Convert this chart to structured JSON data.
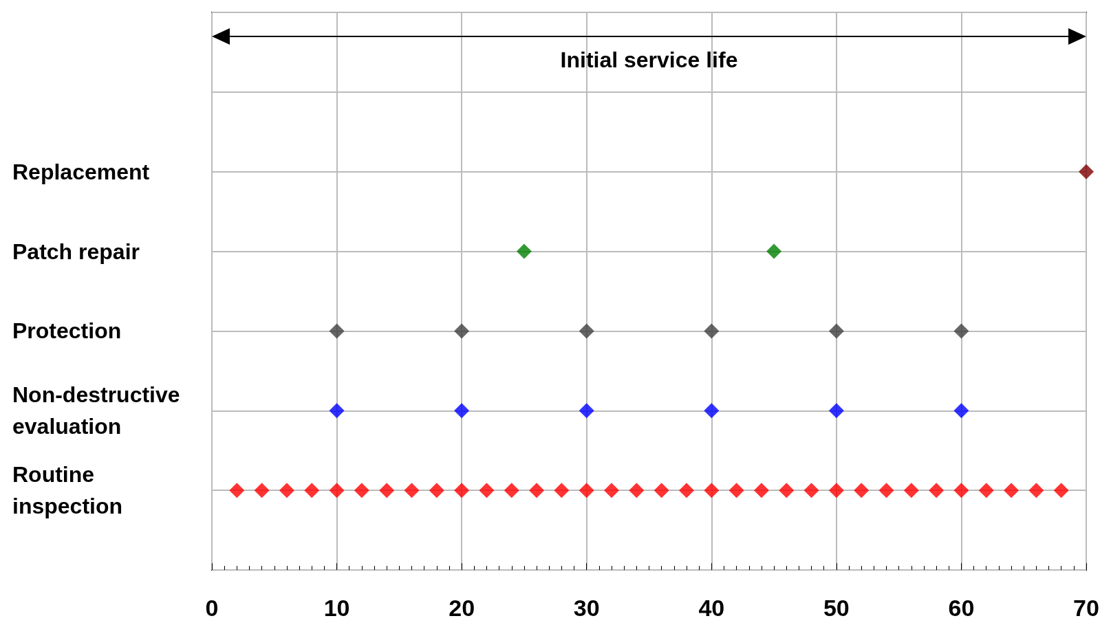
{
  "chart_data": {
    "type": "scatter",
    "orientation": "horizontal",
    "marker": "diamond",
    "grid": true,
    "xlim": [
      0,
      70
    ],
    "xticks": [
      0,
      10,
      20,
      30,
      40,
      50,
      60,
      70
    ],
    "categories": [
      null,
      null,
      "Replacement",
      "Patch repair",
      "Protection",
      "Non-destructive evaluation",
      "Routine inspection",
      null
    ],
    "annotations": [
      "Initial service life"
    ],
    "series": [
      {
        "colors": [
          null,
          null,
          "#800000",
          "#008000",
          "#404040",
          "#0000ff",
          "#ff0000",
          null
        ],
        "values": [
          null,
          null,
          70,
          25,
          10,
          10,
          2,
          null
        ]
      },
      {
        "colors": [
          null,
          null,
          null,
          "#008000",
          "#404040",
          "#0000ff",
          "#ff0000",
          null
        ],
        "values": [
          null,
          null,
          null,
          45,
          20,
          20,
          4,
          null
        ]
      },
      {
        "colors": [
          null,
          null,
          null,
          null,
          "#404040",
          "#0000ff",
          "#ff0000",
          null
        ],
        "values": [
          null,
          null,
          null,
          null,
          30,
          30,
          6,
          null
        ]
      },
      {
        "colors": [
          null,
          null,
          null,
          null,
          "#404040",
          "#0000ff",
          "#ff0000",
          null
        ],
        "values": [
          null,
          null,
          null,
          null,
          40,
          40,
          8,
          null
        ]
      },
      {
        "colors": [
          null,
          null,
          null,
          null,
          "#404040",
          "#0000ff",
          "#ff0000",
          null
        ],
        "values": [
          null,
          null,
          null,
          null,
          50,
          50,
          10,
          null
        ]
      },
      {
        "colors": [
          null,
          null,
          null,
          null,
          "#404040",
          "#0000ff",
          "#ff0000",
          null
        ],
        "values": [
          null,
          null,
          null,
          null,
          60,
          60,
          12,
          null
        ]
      },
      {
        "color": "#ff0000",
        "values": [
          null,
          null,
          null,
          null,
          null,
          null,
          14,
          null
        ]
      },
      {
        "color": "#ff0000",
        "values": [
          null,
          null,
          null,
          null,
          null,
          null,
          16,
          null
        ]
      },
      {
        "color": "#ff0000",
        "values": [
          null,
          null,
          null,
          null,
          null,
          null,
          18,
          null
        ]
      },
      {
        "color": "#ff0000",
        "values": [
          null,
          null,
          null,
          null,
          null,
          null,
          20,
          null
        ]
      },
      {
        "color": "#ff0000",
        "values": [
          null,
          null,
          null,
          null,
          null,
          null,
          22,
          null
        ]
      },
      {
        "color": "#ff0000",
        "values": [
          null,
          null,
          null,
          null,
          null,
          null,
          24,
          null
        ]
      },
      {
        "color": "#ff0000",
        "values": [
          null,
          null,
          null,
          null,
          null,
          null,
          26,
          null
        ]
      },
      {
        "color": "#ff0000",
        "values": [
          null,
          null,
          null,
          null,
          null,
          null,
          28,
          null
        ]
      },
      {
        "color": "#ff0000",
        "values": [
          null,
          null,
          null,
          null,
          null,
          null,
          30,
          null
        ]
      },
      {
        "color": "#ff0000",
        "values": [
          null,
          null,
          null,
          null,
          null,
          null,
          32,
          null
        ]
      },
      {
        "color": "#ff0000",
        "values": [
          null,
          null,
          null,
          null,
          null,
          null,
          34,
          null
        ]
      },
      {
        "color": "#ff0000",
        "values": [
          null,
          null,
          null,
          null,
          null,
          null,
          36,
          null
        ]
      },
      {
        "color": "#ff0000",
        "values": [
          null,
          null,
          null,
          null,
          null,
          null,
          38,
          null
        ]
      },
      {
        "color": "#ff0000",
        "values": [
          null,
          null,
          null,
          null,
          null,
          null,
          40,
          null
        ]
      },
      {
        "color": "#ff0000",
        "values": [
          null,
          null,
          null,
          null,
          null,
          null,
          42,
          null
        ]
      },
      {
        "color": "#ff0000",
        "values": [
          null,
          null,
          null,
          null,
          null,
          null,
          44,
          null
        ]
      },
      {
        "color": "#ff0000",
        "values": [
          null,
          null,
          null,
          null,
          null,
          null,
          46,
          null
        ]
      },
      {
        "color": "#ff0000",
        "values": [
          null,
          null,
          null,
          null,
          null,
          null,
          48,
          null
        ]
      },
      {
        "color": "#ff0000",
        "values": [
          null,
          null,
          null,
          null,
          null,
          null,
          50,
          null
        ]
      },
      {
        "color": "#ff0000",
        "values": [
          null,
          null,
          null,
          null,
          null,
          null,
          52,
          null
        ]
      },
      {
        "color": "#ff0000",
        "values": [
          null,
          null,
          null,
          null,
          null,
          null,
          54,
          null
        ]
      },
      {
        "color": "#ff0000",
        "values": [
          null,
          null,
          null,
          null,
          null,
          null,
          56,
          null
        ]
      },
      {
        "color": "#ff0000",
        "values": [
          null,
          null,
          null,
          null,
          null,
          null,
          58,
          null
        ]
      },
      {
        "color": "#ff0000",
        "values": [
          null,
          null,
          null,
          null,
          null,
          null,
          60,
          null
        ]
      },
      {
        "color": "#ff0000",
        "values": [
          null,
          null,
          null,
          null,
          null,
          null,
          62,
          null
        ]
      },
      {
        "color": "#ff0000",
        "values": [
          null,
          null,
          null,
          null,
          null,
          null,
          64,
          null
        ]
      },
      {
        "color": "#ff0000",
        "values": [
          null,
          null,
          null,
          null,
          null,
          null,
          66,
          null
        ]
      },
      {
        "color": "#ff0000",
        "values": [
          null,
          null,
          null,
          null,
          null,
          null,
          68,
          null
        ]
      }
    ]
  }
}
